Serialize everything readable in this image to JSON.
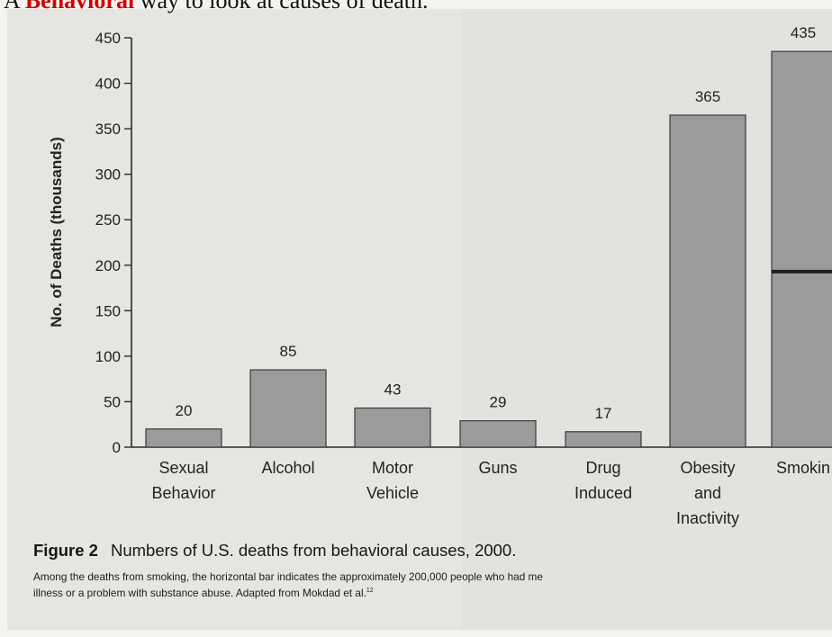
{
  "heading": {
    "prefix": "A ",
    "highlight": "Behavioral",
    "rest": " way to look at causes of death."
  },
  "figure": {
    "label": "Figure 2",
    "title": "Numbers of U.S. deaths from behavioral causes, 2000.",
    "note": "Among the deaths from smoking, the horizontal bar indicates the approximately 200,000 people who had me",
    "note_line2": "illness or a problem with substance abuse. Adapted from Mokdad et al.",
    "note_ref": "12"
  },
  "chart_data": {
    "type": "bar",
    "title": "",
    "xlabel": "",
    "ylabel": "No. of Deaths (thousands)",
    "ylim": [
      0,
      450
    ],
    "yticks": [
      0,
      50,
      100,
      150,
      200,
      250,
      300,
      350,
      400,
      450
    ],
    "grid": false,
    "categories": [
      [
        "Sexual",
        "Behavior"
      ],
      [
        "Alcohol"
      ],
      [
        "Motor",
        "Vehicle"
      ],
      [
        "Guns"
      ],
      [
        "Drug",
        "Induced"
      ],
      [
        "Obesity",
        "and",
        "Inactivity"
      ],
      [
        "Smokin"
      ]
    ],
    "values": [
      20,
      85,
      43,
      29,
      17,
      365,
      435
    ],
    "data_labels": [
      "20",
      "85",
      "43",
      "29",
      "17",
      "365",
      "435"
    ],
    "bar_color": "#9b9b9b",
    "annotation": {
      "category_index": 6,
      "value": 193,
      "description": "horizontal bar within smoking deaths"
    }
  }
}
